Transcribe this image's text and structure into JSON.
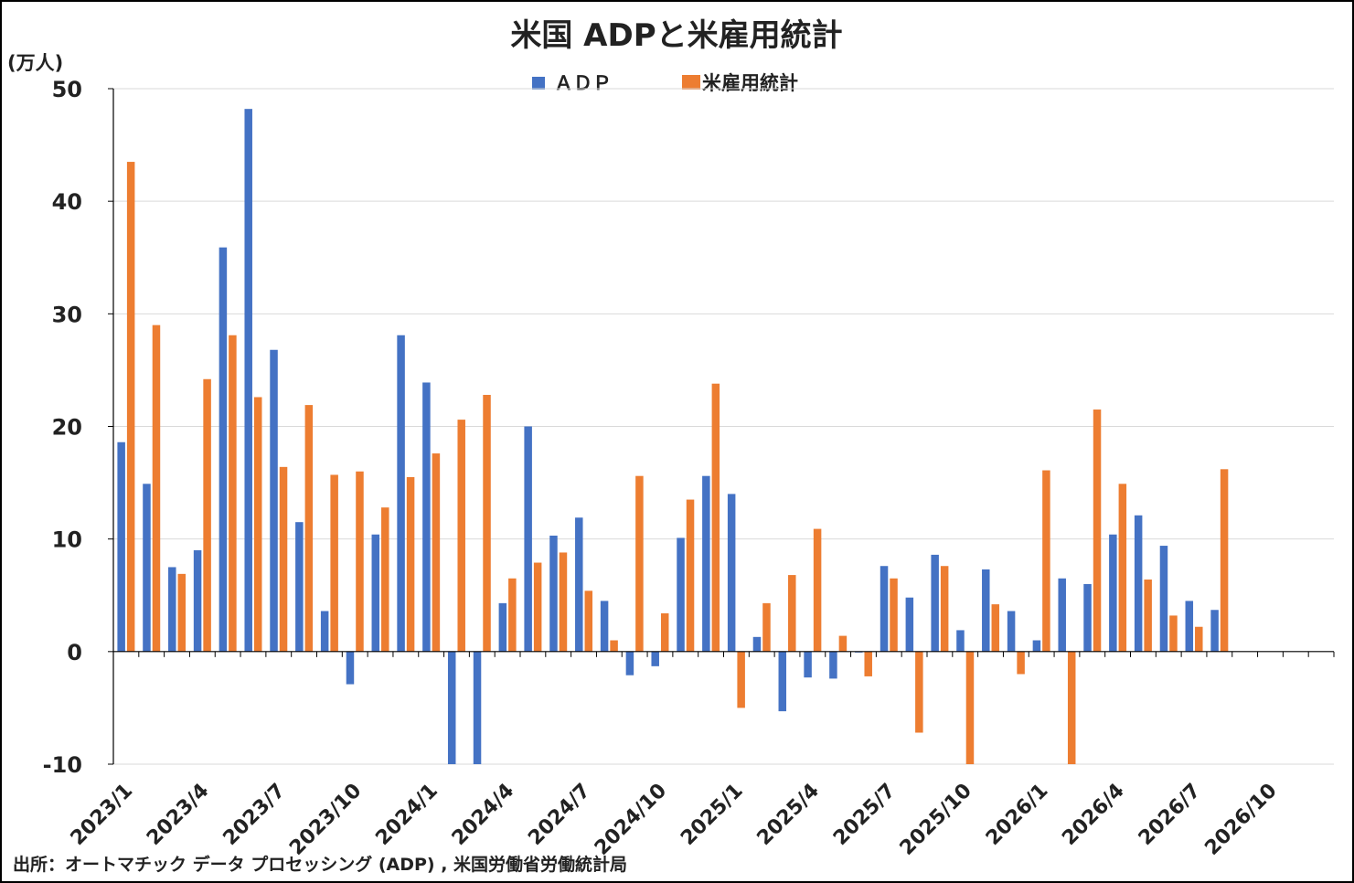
{
  "chart_data": {
    "type": "bar",
    "title": "米国 ADPと米雇用統計",
    "ylabel": "(万人)",
    "ylim": [
      -10,
      50
    ],
    "yticks": [
      50,
      40,
      30,
      20,
      10,
      0,
      -10
    ],
    "x_tick_labels": [
      "2023/1",
      "2023/4",
      "2023/7",
      "2023/10",
      "2024/1",
      "2024/4",
      "2024/7",
      "2024/10",
      "2025/1",
      "2025/4",
      "2025/7",
      "2025/10",
      "2026/1",
      "2026/4",
      "2026/7",
      "2026/10"
    ],
    "x_tick_every": 3,
    "n_periods": 48,
    "legend_position": "top-center",
    "grid": true,
    "series": [
      {
        "name": "ＡＤＰ",
        "color": "#4472C4",
        "values": [
          18.6,
          14.9,
          7.5,
          9.0,
          35.9,
          48.2,
          26.8,
          11.5,
          3.6,
          -2.9,
          10.4,
          28.1,
          23.9,
          -10.0,
          -10.0,
          4.3,
          20.0,
          10.3,
          11.9,
          4.5,
          -2.1,
          -1.3,
          10.1,
          15.6,
          14.0,
          1.3,
          -5.3,
          -2.3,
          -2.4,
          0.0,
          7.6,
          4.8,
          8.6,
          1.9,
          7.3,
          3.6,
          1.0,
          6.5,
          6.0,
          10.4,
          12.1,
          9.4,
          4.5,
          3.7,
          null,
          null,
          null,
          null
        ]
      },
      {
        "name": "米雇用統計",
        "color": "#ED7D31",
        "values": [
          43.5,
          29.0,
          6.9,
          24.2,
          28.1,
          22.6,
          16.4,
          21.9,
          15.7,
          16.0,
          12.8,
          15.5,
          17.6,
          20.6,
          22.8,
          6.5,
          7.9,
          8.8,
          5.4,
          1.0,
          15.6,
          3.4,
          13.5,
          23.8,
          -5.0,
          4.3,
          6.8,
          10.9,
          1.4,
          -2.2,
          6.5,
          -7.2,
          7.6,
          -10.0,
          4.2,
          -2.0,
          16.1,
          -10.0,
          21.5,
          14.9,
          6.4,
          3.2,
          2.2,
          16.2,
          null,
          null,
          null,
          null
        ]
      }
    ]
  },
  "source_text": "出所：オートマチック データ プロセッシング (ADP) , 米国労働省労働統計局",
  "colors": {
    "negative_tick": "#FF0000",
    "gridline": "#D9D9D9",
    "axis": "#000000"
  }
}
